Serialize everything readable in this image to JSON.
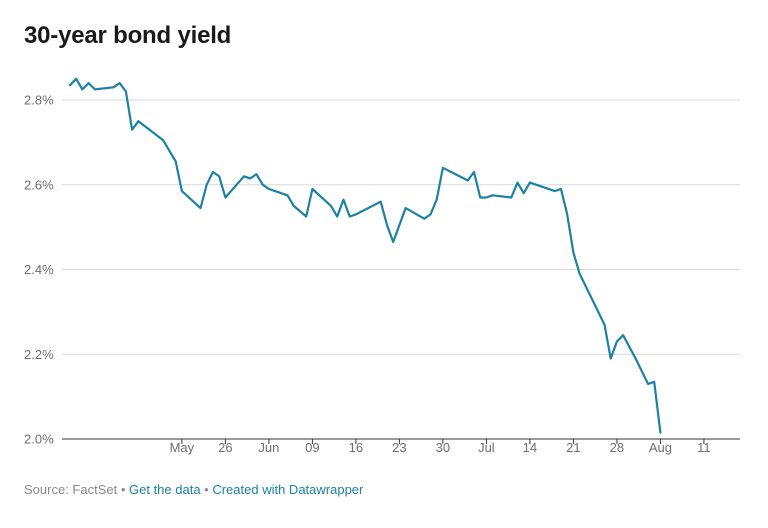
{
  "header": {
    "title": "30-year bond yield"
  },
  "footer": {
    "source_label": "Source: FactSet",
    "separator": " • ",
    "get_data_link": "Get the data",
    "created_with_link": "Created with Datawrapper"
  },
  "colors": {
    "line": "#1d81a2",
    "grid": "#d9d9d9",
    "axis": "#333333"
  },
  "chart_data": {
    "type": "line",
    "title": "30-year bond yield",
    "xlabel": "",
    "ylabel": "",
    "ylim": [
      2.0,
      2.9
    ],
    "xlim": [
      "2019-05-01",
      "2019-08-16"
    ],
    "grid": true,
    "y_ticks": [
      {
        "value": 2.0,
        "label": "2.0%"
      },
      {
        "value": 2.2,
        "label": "2.2%"
      },
      {
        "value": 2.4,
        "label": "2.4%"
      },
      {
        "value": 2.6,
        "label": "2.6%"
      },
      {
        "value": 2.8,
        "label": "2.8%"
      }
    ],
    "x_ticks": [
      {
        "date": "2019-05-19",
        "label": "May"
      },
      {
        "date": "2019-05-26",
        "label": "26"
      },
      {
        "date": "2019-06-02",
        "label": "Jun"
      },
      {
        "date": "2019-06-09",
        "label": "09"
      },
      {
        "date": "2019-06-16",
        "label": "16"
      },
      {
        "date": "2019-06-23",
        "label": "23"
      },
      {
        "date": "2019-06-30",
        "label": "30"
      },
      {
        "date": "2019-07-07",
        "label": "Jul"
      },
      {
        "date": "2019-07-14",
        "label": "14"
      },
      {
        "date": "2019-07-21",
        "label": "21"
      },
      {
        "date": "2019-07-28",
        "label": "28"
      },
      {
        "date": "2019-08-04",
        "label": "Aug"
      },
      {
        "date": "2019-08-11",
        "label": "11"
      }
    ],
    "series": [
      {
        "points": [
          [
            "2019-05-01",
            2.835
          ],
          [
            "2019-05-02",
            2.85
          ],
          [
            "2019-05-03",
            2.825
          ],
          [
            "2019-05-04",
            2.84
          ],
          [
            "2019-05-05",
            2.825
          ],
          [
            "2019-05-08",
            2.83
          ],
          [
            "2019-05-09",
            2.84
          ],
          [
            "2019-05-10",
            2.82
          ],
          [
            "2019-05-11",
            2.73
          ],
          [
            "2019-05-12",
            2.75
          ],
          [
            "2019-05-16",
            2.705
          ],
          [
            "2019-05-17",
            2.68
          ],
          [
            "2019-05-18",
            2.655
          ],
          [
            "2019-05-19",
            2.585
          ],
          [
            "2019-05-22",
            2.545
          ],
          [
            "2019-05-23",
            2.6
          ],
          [
            "2019-05-24",
            2.63
          ],
          [
            "2019-05-25",
            2.62
          ],
          [
            "2019-05-26",
            2.57
          ],
          [
            "2019-05-29",
            2.62
          ],
          [
            "2019-05-30",
            2.615
          ],
          [
            "2019-05-31",
            2.625
          ],
          [
            "2019-06-01",
            2.6
          ],
          [
            "2019-06-02",
            2.59
          ],
          [
            "2019-06-05",
            2.575
          ],
          [
            "2019-06-06",
            2.55
          ],
          [
            "2019-06-08",
            2.525
          ],
          [
            "2019-06-09",
            2.59
          ],
          [
            "2019-06-12",
            2.55
          ],
          [
            "2019-06-13",
            2.525
          ],
          [
            "2019-06-14",
            2.565
          ],
          [
            "2019-06-15",
            2.525
          ],
          [
            "2019-06-16",
            2.53
          ],
          [
            "2019-06-20",
            2.56
          ],
          [
            "2019-06-21",
            2.505
          ],
          [
            "2019-06-22",
            2.465
          ],
          [
            "2019-06-24",
            2.545
          ],
          [
            "2019-06-27",
            2.52
          ],
          [
            "2019-06-28",
            2.53
          ],
          [
            "2019-06-29",
            2.565
          ],
          [
            "2019-06-30",
            2.64
          ],
          [
            "2019-07-04",
            2.61
          ],
          [
            "2019-07-05",
            2.63
          ],
          [
            "2019-07-06",
            2.57
          ],
          [
            "2019-07-07",
            2.57
          ],
          [
            "2019-07-08",
            2.575
          ],
          [
            "2019-07-11",
            2.57
          ],
          [
            "2019-07-12",
            2.605
          ],
          [
            "2019-07-13",
            2.58
          ],
          [
            "2019-07-14",
            2.605
          ],
          [
            "2019-07-18",
            2.585
          ],
          [
            "2019-07-19",
            2.59
          ],
          [
            "2019-07-20",
            2.53
          ],
          [
            "2019-07-21",
            2.44
          ],
          [
            "2019-07-22",
            2.39
          ],
          [
            "2019-07-26",
            2.27
          ],
          [
            "2019-07-27",
            2.19
          ],
          [
            "2019-07-28",
            2.23
          ],
          [
            "2019-07-29",
            2.245
          ],
          [
            "2019-07-31",
            2.19
          ],
          [
            "2019-08-02",
            2.13
          ],
          [
            "2019-08-03",
            2.135
          ],
          [
            "2019-08-04",
            2.015
          ]
        ]
      }
    ]
  }
}
